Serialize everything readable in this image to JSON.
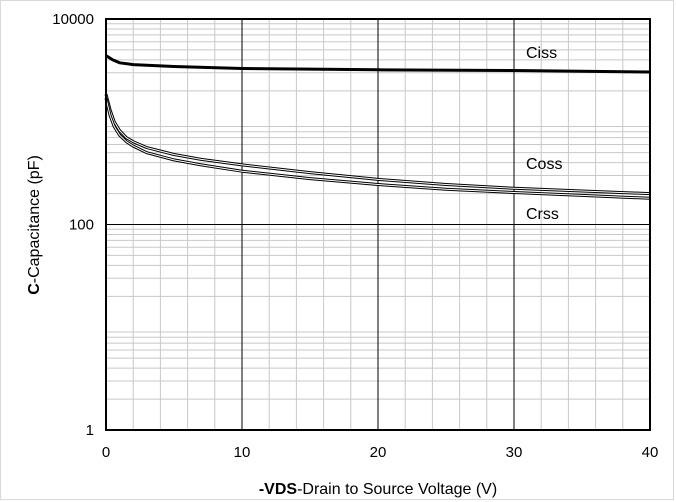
{
  "chart_data": {
    "type": "line",
    "title": "",
    "xlabel": {
      "bold": "-VDS",
      "rest": "-Drain to Source Voltage (V)"
    },
    "ylabel": {
      "bold": "C",
      "rest": "-Capacitance (pF)"
    },
    "x_scale": "linear",
    "y_scale": "log",
    "xlim": [
      0,
      40
    ],
    "ylim": [
      1,
      10000
    ],
    "x_ticks": [
      0,
      10,
      20,
      30,
      40
    ],
    "y_ticks": [
      1,
      100,
      10000
    ],
    "x_tick_labels": [
      "0",
      "10",
      "20",
      "30",
      "40"
    ],
    "y_tick_labels": [
      "1",
      "100",
      "10000"
    ],
    "grid": true,
    "legend": "none (inline labels)",
    "series": [
      {
        "name": "Ciss",
        "x": [
          0,
          0.5,
          1,
          2,
          5,
          10,
          20,
          30,
          40
        ],
        "y": [
          4400,
          4000,
          3750,
          3600,
          3450,
          3300,
          3200,
          3150,
          3050
        ]
      },
      {
        "name": "Coss",
        "x": [
          0,
          0.3,
          0.6,
          1,
          1.5,
          2,
          3,
          5,
          7,
          10,
          15,
          20,
          25,
          30,
          35,
          40
        ],
        "y": [
          1850,
          1300,
          1000,
          820,
          700,
          640,
          560,
          480,
          430,
          380,
          320,
          275,
          245,
          225,
          212,
          200
        ]
      },
      {
        "name": "Crss",
        "x": [
          0,
          0.3,
          0.6,
          1,
          1.5,
          2,
          3,
          5,
          7,
          10,
          15,
          20,
          25,
          30,
          35,
          40
        ],
        "y": [
          1700,
          1150,
          900,
          740,
          640,
          580,
          500,
          425,
          380,
          330,
          280,
          245,
          220,
          205,
          192,
          180
        ]
      }
    ],
    "series_label_text": [
      "Ciss",
      "Coss",
      "Crss"
    ]
  }
}
